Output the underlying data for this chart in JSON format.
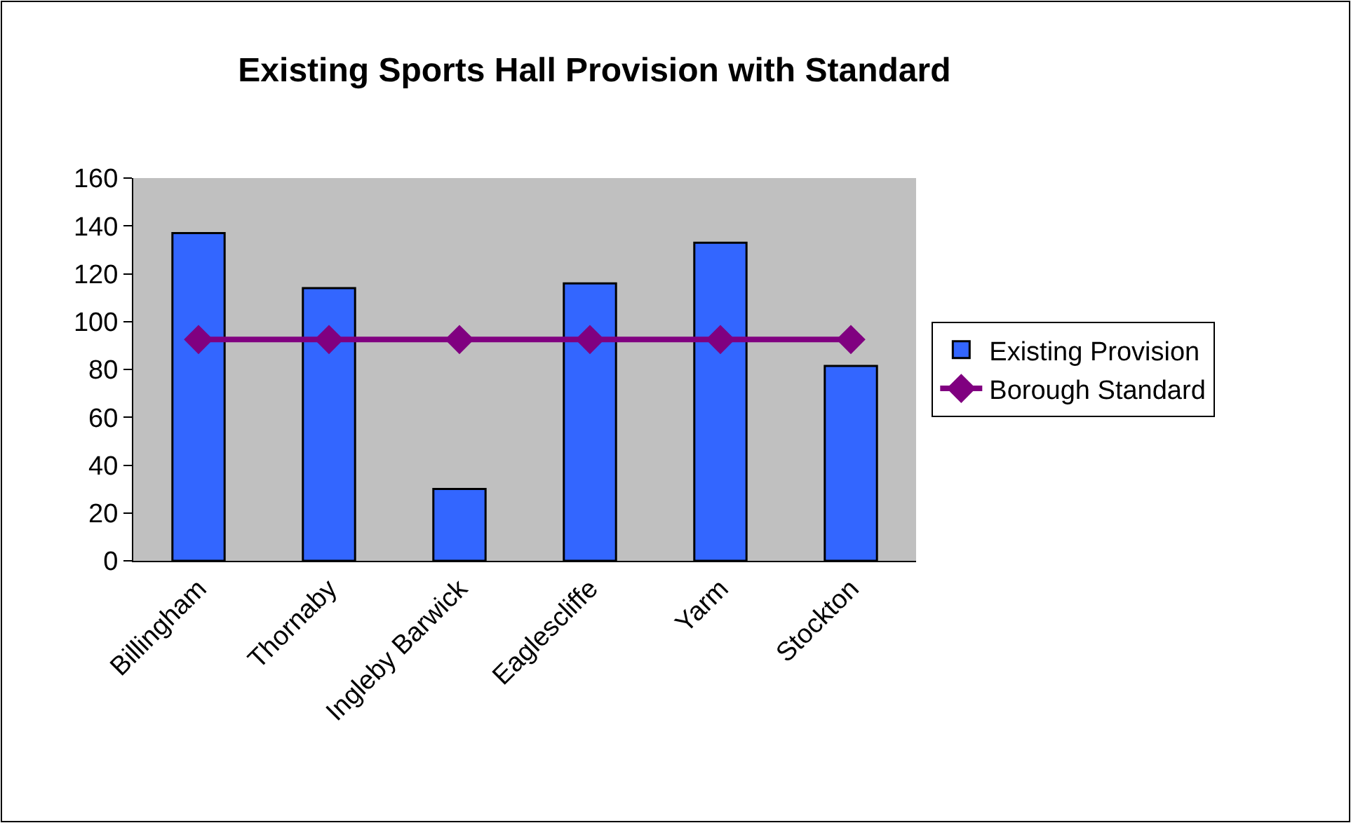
{
  "chart_data": {
    "type": "bar",
    "title": "Existing Sports Hall Provision with Standard",
    "categories": [
      "Billingham",
      "Thornaby",
      "Ingleby Barwick",
      "Eaglescliffe",
      "Yarm",
      "Stockton"
    ],
    "series": [
      {
        "name": "Existing Provision",
        "color": "#3366ff",
        "values": [
          137,
          114,
          30,
          116,
          133,
          81.5
        ]
      },
      {
        "name": "Borough Standard",
        "type": "line",
        "color": "#800080",
        "marker": "diamond",
        "line_style": "solid",
        "values": [
          92.5,
          92.5,
          92.5,
          92.5,
          92.5,
          92.5
        ]
      }
    ],
    "ylim": [
      0,
      160
    ],
    "yticks": [
      0,
      20,
      40,
      60,
      80,
      100,
      120,
      140,
      160
    ],
    "grid": false,
    "legend": "right"
  }
}
